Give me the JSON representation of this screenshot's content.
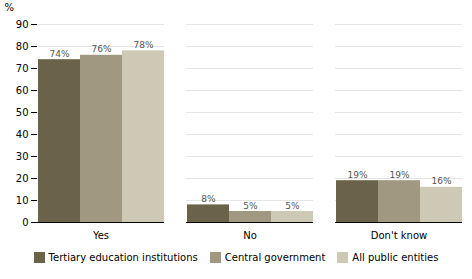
{
  "chart_data": {
    "type": "bar",
    "categories": [
      "Yes",
      "No",
      "Don't know"
    ],
    "series": [
      {
        "name": "Tertiary education institutions",
        "color": "#6b6349",
        "values": [
          74,
          8,
          19
        ],
        "value_labels": [
          "74%",
          "8%",
          "19%"
        ]
      },
      {
        "name": "Central government",
        "color": "#a09880",
        "values": [
          76,
          5,
          19
        ],
        "value_labels": [
          "76%",
          "5%",
          "19%"
        ]
      },
      {
        "name": "All public entities",
        "color": "#cec9b4",
        "values": [
          78,
          5,
          16
        ],
        "value_labels": [
          "78%",
          "5%",
          "16%"
        ]
      }
    ],
    "ylabel": "%",
    "ylim": [
      0,
      90
    ],
    "yticks": [
      0,
      10,
      20,
      30,
      40,
      50,
      60,
      70,
      80,
      90
    ],
    "grid": true,
    "data_labels": true,
    "legend": "bottom"
  }
}
